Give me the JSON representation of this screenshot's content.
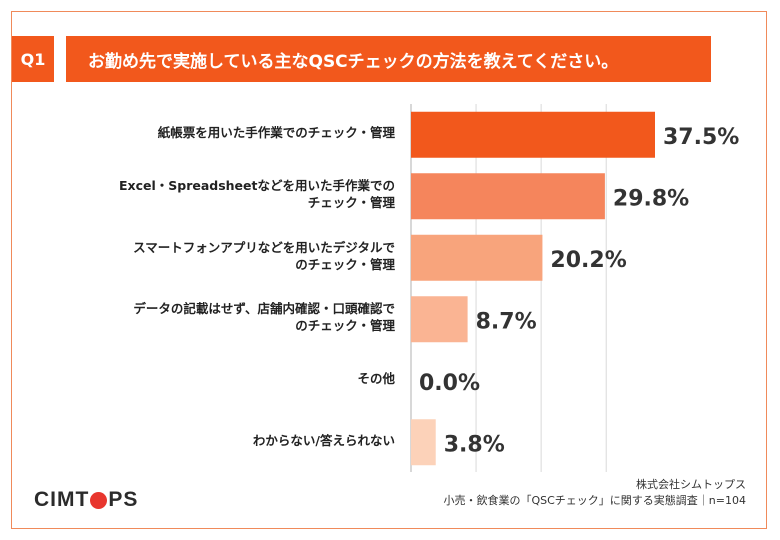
{
  "header": {
    "badge": "Q1",
    "title": "お勤め先で実施している主なQSCチェックの方法を教えてください。"
  },
  "chart_data": {
    "type": "bar",
    "orientation": "horizontal",
    "categories": [
      [
        "紙帳票を用いた手作業でのチェック・管理"
      ],
      [
        "Excel・Spreadsheetなどを用いた手作業での",
        "チェック・管理"
      ],
      [
        "スマートフォンアプリなどを用いたデジタルで",
        "のチェック・管理"
      ],
      [
        "データの記載はせず、店舗内確認・口頭確認で",
        "のチェック・管理"
      ],
      [
        "その他"
      ],
      [
        "わからない/答えられない"
      ]
    ],
    "values": [
      37.5,
      29.8,
      20.2,
      8.7,
      0.0,
      3.8
    ],
    "value_labels": [
      "37.5%",
      "29.8%",
      "20.2%",
      "8.7%",
      "0.0%",
      "3.8%"
    ],
    "colors": [
      "#f2581c",
      "#f5855c",
      "#f8a47c",
      "#fab493",
      "#fbc6a8",
      "#fcd2b9"
    ],
    "xlim": [
      0,
      40
    ],
    "grid": true
  },
  "footer": {
    "logo_left": "CIMT",
    "logo_right": "PS",
    "source_line1": "株式会社シムトップス",
    "source_line2": "小売・飲食業の「QSCチェック」に関する実態調査｜n=104"
  }
}
